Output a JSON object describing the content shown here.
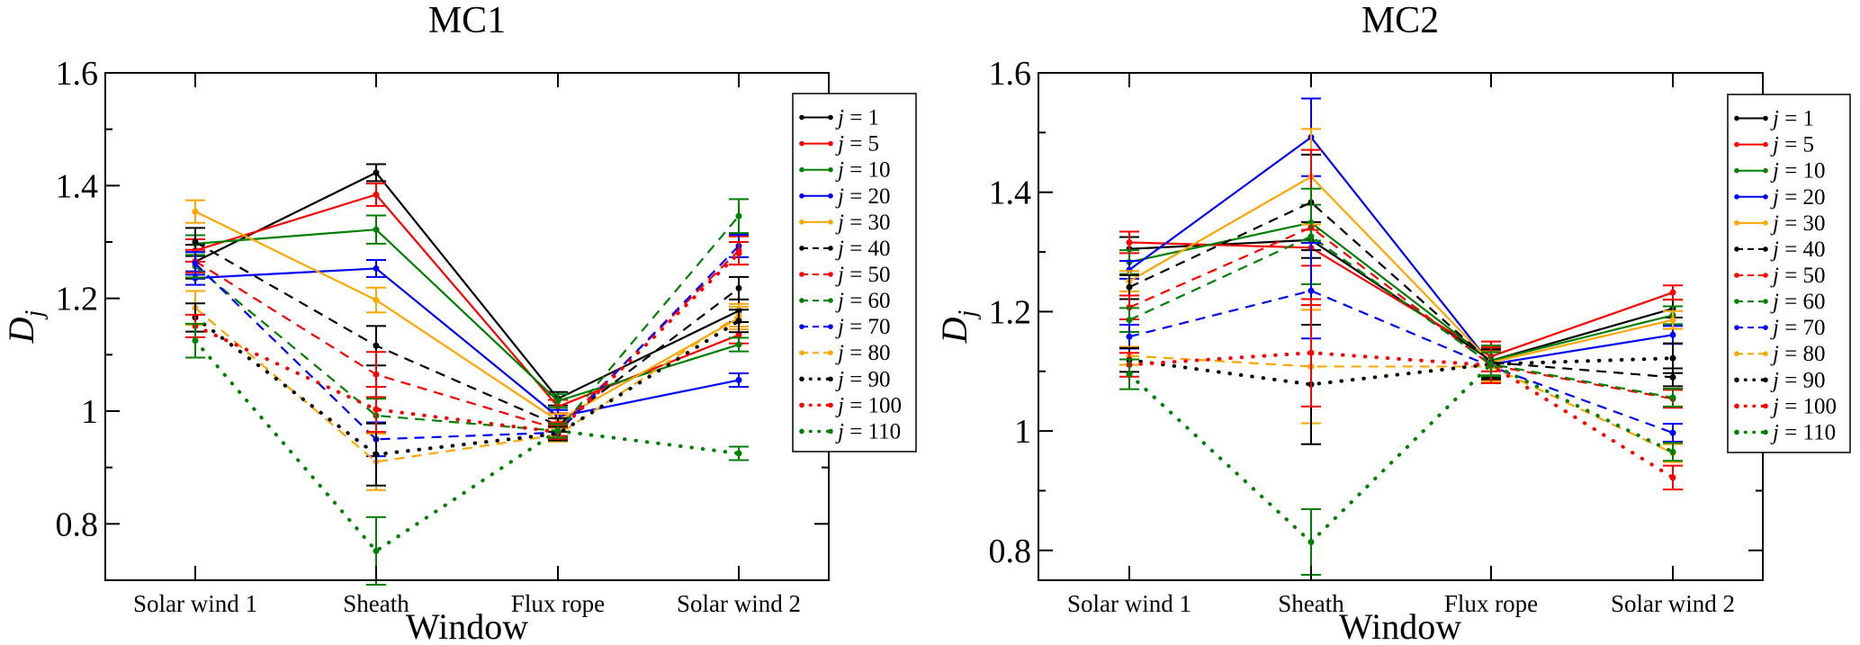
{
  "chart_data": [
    {
      "type": "line",
      "title": "MC1",
      "xlabel": "Window",
      "ylabel": "D_j",
      "ylabel_main": "D",
      "ylabel_sub": "j",
      "categories": [
        "Solar wind 1",
        "Sheath",
        "Flux rope",
        "Solar wind 2"
      ],
      "ylim": [
        0.7,
        1.6
      ],
      "yticks": [
        0.8,
        1.0,
        1.2,
        1.4,
        1.6
      ],
      "ytick_labels": [
        "0.8",
        "1",
        "1.2",
        "1.4",
        "1.6"
      ],
      "yminor": [
        0.9,
        1.1,
        1.3,
        1.5
      ],
      "legend_position": "right-outside-top",
      "series": [
        {
          "name": "j = 1",
          "j": "1",
          "color": "#000000",
          "style": "solid",
          "values": [
            1.265,
            1.423,
            1.022,
            1.178
          ],
          "errors": [
            0.03,
            0.015,
            0.012,
            0.02
          ]
        },
        {
          "name": "j = 5",
          "j": "5",
          "color": "#ff0000",
          "style": "solid",
          "values": [
            1.285,
            1.384,
            1.008,
            1.135
          ],
          "errors": [
            0.02,
            0.02,
            0.012,
            0.015
          ]
        },
        {
          "name": "j = 10",
          "j": "10",
          "color": "#008000",
          "style": "solid",
          "values": [
            1.297,
            1.322,
            1.018,
            1.118
          ],
          "errors": [
            0.015,
            0.025,
            0.012,
            0.012
          ]
        },
        {
          "name": "j = 20",
          "j": "20",
          "color": "#0000ff",
          "style": "solid",
          "values": [
            1.236,
            1.253,
            0.99,
            1.055
          ],
          "errors": [
            0.012,
            0.015,
            0.012,
            0.012
          ]
        },
        {
          "name": "j = 30",
          "j": "30",
          "color": "#ffa500",
          "style": "solid",
          "values": [
            1.354,
            1.197,
            0.983,
            1.165
          ],
          "errors": [
            0.02,
            0.022,
            0.012,
            0.02
          ]
        },
        {
          "name": "j = 40",
          "j": "40",
          "color": "#000000",
          "style": "dashed",
          "values": [
            1.3,
            1.116,
            0.975,
            1.218
          ],
          "errors": [
            0.025,
            0.035,
            0.012,
            0.02
          ]
        },
        {
          "name": "j = 50",
          "j": "50",
          "color": "#ff0000",
          "style": "dashed",
          "values": [
            1.266,
            1.065,
            0.968,
            1.285
          ],
          "errors": [
            0.02,
            0.04,
            0.012,
            0.025
          ]
        },
        {
          "name": "j = 60",
          "j": "60",
          "color": "#008000",
          "style": "dashed",
          "values": [
            1.257,
            0.992,
            0.965,
            1.346
          ],
          "errors": [
            0.02,
            0.03,
            0.012,
            0.03
          ]
        },
        {
          "name": "j = 70",
          "j": "70",
          "color": "#0000ff",
          "style": "dashed",
          "values": [
            1.262,
            0.95,
            0.962,
            1.293
          ],
          "errors": [
            0.02,
            0.03,
            0.012,
            0.02
          ]
        },
        {
          "name": "j = 80",
          "j": "80",
          "color": "#ffa500",
          "style": "dashed",
          "values": [
            1.183,
            0.91,
            0.958,
            1.17
          ],
          "errors": [
            0.03,
            0.05,
            0.012,
            0.02
          ]
        },
        {
          "name": "j = 90",
          "j": "90",
          "color": "#000000",
          "style": "dotted",
          "values": [
            1.166,
            0.923,
            0.96,
            1.16
          ],
          "errors": [
            0.025,
            0.055,
            0.012,
            0.02
          ]
        },
        {
          "name": "j = 100",
          "j": "100",
          "color": "#ff0000",
          "style": "dotted",
          "values": [
            1.151,
            1.003,
            0.963,
            1.28
          ],
          "errors": [
            0.02,
            0.04,
            0.012,
            0.02
          ]
        },
        {
          "name": "j = 110",
          "j": "110",
          "color": "#008000",
          "style": "dotted",
          "values": [
            1.125,
            0.752,
            0.965,
            0.925
          ],
          "errors": [
            0.03,
            0.06,
            0.012,
            0.012
          ]
        }
      ]
    },
    {
      "type": "line",
      "title": "MC2",
      "xlabel": "Window",
      "ylabel": "D_j",
      "ylabel_main": "D",
      "ylabel_sub": "j",
      "categories": [
        "Solar wind 1",
        "Sheath",
        "Flux rope",
        "Solar wind 2"
      ],
      "ylim": [
        0.75,
        1.6
      ],
      "yticks": [
        0.8,
        1.0,
        1.2,
        1.4,
        1.6
      ],
      "ytick_labels": [
        "0.8",
        "1",
        "1.2",
        "1.4",
        "1.6"
      ],
      "yminor": [
        0.9,
        1.1,
        1.3,
        1.5
      ],
      "legend_position": "right-outside-top",
      "series": [
        {
          "name": "j = 1",
          "j": "1",
          "color": "#000000",
          "style": "solid",
          "values": [
            1.305,
            1.32,
            1.118,
            1.205
          ],
          "errors": [
            0.02,
            0.03,
            0.025,
            0.015
          ]
        },
        {
          "name": "j = 5",
          "j": "5",
          "color": "#ff0000",
          "style": "solid",
          "values": [
            1.316,
            1.307,
            1.125,
            1.232
          ],
          "errors": [
            0.018,
            0.03,
            0.025,
            0.012
          ]
        },
        {
          "name": "j = 10",
          "j": "10",
          "color": "#008000",
          "style": "solid",
          "values": [
            1.283,
            1.349,
            1.118,
            1.194
          ],
          "errors": [
            0.02,
            0.03,
            0.025,
            0.015
          ]
        },
        {
          "name": "j = 20",
          "j": "20",
          "color": "#0000ff",
          "style": "solid",
          "values": [
            1.27,
            1.492,
            1.112,
            1.161
          ],
          "errors": [
            0.015,
            0.065,
            0.025,
            0.015
          ]
        },
        {
          "name": "j = 30",
          "j": "30",
          "color": "#ffa500",
          "style": "solid",
          "values": [
            1.251,
            1.426,
            1.115,
            1.186
          ],
          "errors": [
            0.017,
            0.08,
            0.025,
            0.015
          ]
        },
        {
          "name": "j = 40",
          "j": "40",
          "color": "#000000",
          "style": "dashed",
          "values": [
            1.241,
            1.383,
            1.115,
            1.09
          ],
          "errors": [
            0.02,
            0.08,
            0.025,
            0.015
          ]
        },
        {
          "name": "j = 50",
          "j": "50",
          "color": "#ff0000",
          "style": "dashed",
          "values": [
            1.207,
            1.341,
            1.11,
            1.054
          ],
          "errors": [
            0.02,
            0.13,
            0.025,
            0.015
          ]
        },
        {
          "name": "j = 60",
          "j": "60",
          "color": "#008000",
          "style": "dashed",
          "values": [
            1.186,
            1.326,
            1.112,
            1.056
          ],
          "errors": [
            0.02,
            0.08,
            0.025,
            0.015
          ]
        },
        {
          "name": "j = 70",
          "j": "70",
          "color": "#0000ff",
          "style": "dashed",
          "values": [
            1.158,
            1.235,
            1.108,
            0.997
          ],
          "errors": [
            0.02,
            0.08,
            0.025,
            0.015
          ]
        },
        {
          "name": "j = 80",
          "j": "80",
          "color": "#ffa500",
          "style": "dashed",
          "values": [
            1.126,
            1.108,
            1.108,
            0.963
          ],
          "errors": [
            0.015,
            0.095,
            0.025,
            0.015
          ]
        },
        {
          "name": "j = 90",
          "j": "90",
          "color": "#000000",
          "style": "dotted",
          "values": [
            1.119,
            1.078,
            1.112,
            1.122
          ],
          "errors": [
            0.02,
            0.1,
            0.025,
            0.025
          ]
        },
        {
          "name": "j = 100",
          "j": "100",
          "color": "#ff0000",
          "style": "dotted",
          "values": [
            1.111,
            1.131,
            1.11,
            0.922
          ],
          "errors": [
            0.02,
            0.09,
            0.03,
            0.02
          ]
        },
        {
          "name": "j = 110",
          "j": "110",
          "color": "#008000",
          "style": "dotted",
          "values": [
            1.095,
            0.814,
            1.112,
            0.965
          ],
          "errors": [
            0.025,
            0.055,
            0.02,
            0.015
          ]
        }
      ]
    }
  ]
}
